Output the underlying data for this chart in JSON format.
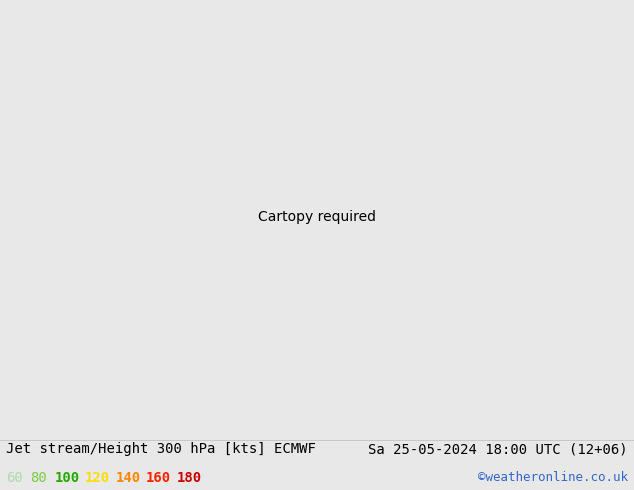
{
  "title_left": "Jet stream/Height 300 hPa [kts] ECMWF",
  "title_right": "Sa 25-05-2024 18:00 UTC (12+06)",
  "credit": "©weatheronline.co.uk",
  "legend_values": [
    "60",
    "80",
    "100",
    "120",
    "140",
    "160",
    "180"
  ],
  "legend_colors": [
    "#aaddaa",
    "#77cc44",
    "#22aa00",
    "#ffdd00",
    "#ff8800",
    "#ff2200",
    "#cc0000"
  ],
  "bg_color": "#e8e8e8",
  "title_fontsize": 10,
  "credit_fontsize": 9,
  "legend_fontsize": 10,
  "fig_width": 6.34,
  "fig_height": 4.9,
  "map_extent": [
    -30,
    45,
    25,
    75
  ],
  "jet_levels": [
    60,
    80,
    100,
    120,
    140,
    160,
    180
  ],
  "jet_colors": [
    "#c8eec8",
    "#aaddaa",
    "#77cc44",
    "#22aa00",
    "#ffee44",
    "#ffdd00",
    "#ff8800"
  ],
  "contour_lw": 1.6,
  "land_color": "#d8d8d0",
  "ocean_color": "#e8e8e8",
  "coast_color": "#999999",
  "border_color": "#aaaaaa"
}
